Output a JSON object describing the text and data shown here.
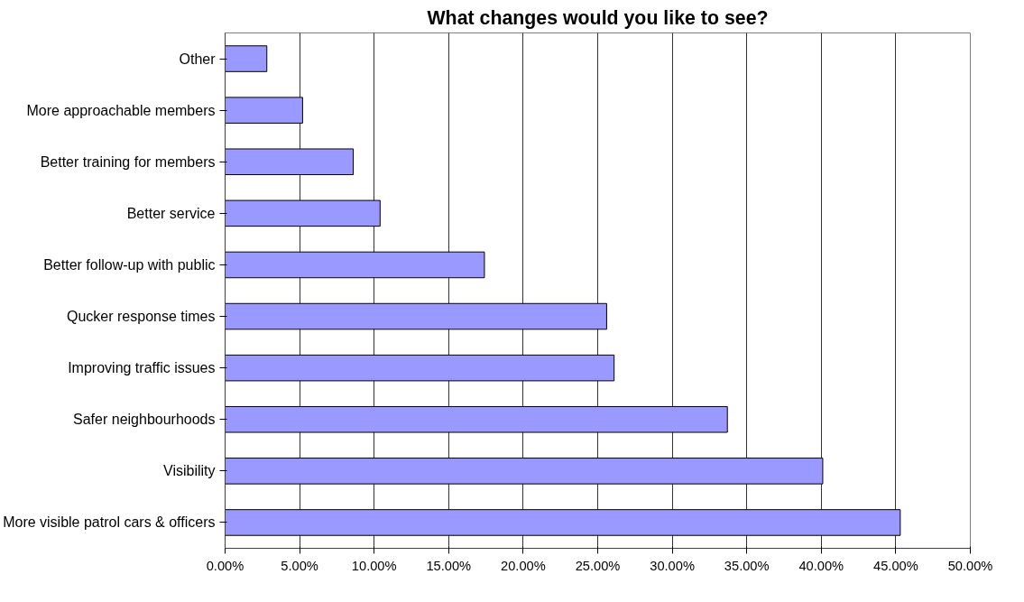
{
  "chart_data": {
    "type": "bar",
    "orientation": "horizontal",
    "title": "What changes would you like to see?",
    "categories": [
      "Other",
      "More approachable members",
      "Better training for members",
      "Better service",
      "Better follow-up with public",
      "Qucker response times",
      "Improving traffic issues",
      "Safer neighbourhoods",
      "Visibility",
      "More visible patrol cars & officers"
    ],
    "values": [
      2.8,
      5.2,
      8.6,
      10.4,
      17.4,
      25.6,
      26.1,
      33.7,
      40.1,
      45.3
    ],
    "color": "#9999ff",
    "xlim": [
      0,
      50
    ],
    "xticks": [
      {
        "value": 0,
        "label": "0.00%"
      },
      {
        "value": 5,
        "label": "5.00%"
      },
      {
        "value": 10,
        "label": "10.00%"
      },
      {
        "value": 15,
        "label": "15.00%"
      },
      {
        "value": 20,
        "label": "20.00%"
      },
      {
        "value": 25,
        "label": "25.00%"
      },
      {
        "value": 30,
        "label": "30.00%"
      },
      {
        "value": 35,
        "label": "35.00%"
      },
      {
        "value": 40,
        "label": "40.00%"
      },
      {
        "value": 45,
        "label": "45.00%"
      },
      {
        "value": 50,
        "label": "50.00%"
      }
    ],
    "grid": "x"
  }
}
